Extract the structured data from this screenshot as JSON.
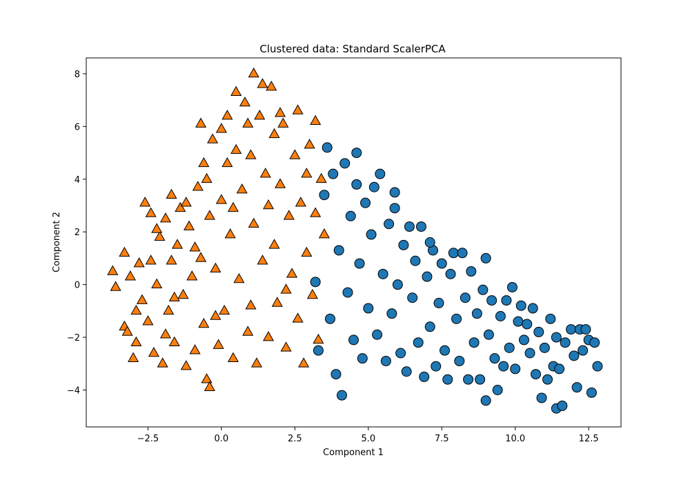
{
  "chart_data": {
    "type": "scatter",
    "title": "Clustered data: Standard ScalerPCA",
    "xlabel": "Component 1",
    "ylabel": "Component 2",
    "xlim": [
      -4.6,
      13.6
    ],
    "ylim": [
      -5.4,
      8.6
    ],
    "xticks": [
      -2.5,
      0.0,
      2.5,
      5.0,
      7.5,
      10.0,
      12.5
    ],
    "xtick_labels": [
      "−2.5",
      "0.0",
      "2.5",
      "5.0",
      "7.5",
      "10.0",
      "12.5"
    ],
    "yticks": [
      -4,
      -2,
      0,
      2,
      4,
      6,
      8
    ],
    "ytick_labels": [
      "−4",
      "−2",
      "0",
      "2",
      "4",
      "6",
      "8"
    ],
    "grid": false,
    "series": [
      {
        "marker": "triangle",
        "color": "#ff7f0e",
        "edge_color": "#000000",
        "points": [
          [
            -3.7,
            0.5
          ],
          [
            -3.6,
            -0.1
          ],
          [
            -3.3,
            1.2
          ],
          [
            -3.3,
            -1.6
          ],
          [
            -3.2,
            -1.8
          ],
          [
            -3.1,
            0.3
          ],
          [
            -3.0,
            -2.8
          ],
          [
            -2.9,
            -2.2
          ],
          [
            -2.8,
            0.8
          ],
          [
            -2.7,
            -0.6
          ],
          [
            -2.6,
            3.1
          ],
          [
            -2.5,
            -1.4
          ],
          [
            -2.4,
            2.7
          ],
          [
            -2.3,
            -2.6
          ],
          [
            -2.2,
            0.0
          ],
          [
            -2.1,
            1.8
          ],
          [
            -2.0,
            -3.0
          ],
          [
            -1.9,
            2.5
          ],
          [
            -1.8,
            -1.0
          ],
          [
            -1.7,
            0.9
          ],
          [
            -1.7,
            3.4
          ],
          [
            -1.6,
            -2.2
          ],
          [
            -1.5,
            1.5
          ],
          [
            -1.4,
            2.9
          ],
          [
            -1.3,
            -0.4
          ],
          [
            -1.2,
            -3.1
          ],
          [
            -1.1,
            2.2
          ],
          [
            -1.0,
            0.3
          ],
          [
            -0.9,
            -2.5
          ],
          [
            -0.8,
            3.7
          ],
          [
            -0.7,
            6.1
          ],
          [
            -0.7,
            1.0
          ],
          [
            -0.6,
            -1.5
          ],
          [
            -0.5,
            -3.6
          ],
          [
            -0.5,
            4.0
          ],
          [
            -0.4,
            2.6
          ],
          [
            -0.4,
            -3.9
          ],
          [
            -0.3,
            5.5
          ],
          [
            -0.2,
            0.6
          ],
          [
            -0.1,
            -2.3
          ],
          [
            0.0,
            5.9
          ],
          [
            0.0,
            3.2
          ],
          [
            0.1,
            -1.0
          ],
          [
            0.2,
            4.6
          ],
          [
            0.3,
            1.9
          ],
          [
            0.4,
            -2.8
          ],
          [
            0.5,
            7.3
          ],
          [
            0.5,
            5.1
          ],
          [
            0.6,
            0.2
          ],
          [
            0.7,
            3.6
          ],
          [
            0.8,
            6.9
          ],
          [
            0.9,
            -1.8
          ],
          [
            1.0,
            4.9
          ],
          [
            1.1,
            8.0
          ],
          [
            1.1,
            2.3
          ],
          [
            1.2,
            -3.0
          ],
          [
            1.3,
            6.4
          ],
          [
            1.4,
            0.9
          ],
          [
            1.5,
            4.2
          ],
          [
            1.6,
            -2.0
          ],
          [
            1.7,
            7.5
          ],
          [
            1.8,
            5.7
          ],
          [
            1.8,
            1.5
          ],
          [
            1.9,
            -0.7
          ],
          [
            2.0,
            3.8
          ],
          [
            2.1,
            6.1
          ],
          [
            2.2,
            -2.4
          ],
          [
            2.3,
            2.6
          ],
          [
            2.4,
            0.4
          ],
          [
            2.5,
            4.9
          ],
          [
            2.6,
            -1.3
          ],
          [
            2.6,
            6.6
          ],
          [
            2.7,
            3.1
          ],
          [
            2.8,
            -3.0
          ],
          [
            2.9,
            1.2
          ],
          [
            3.0,
            5.3
          ],
          [
            3.1,
            -0.4
          ],
          [
            3.2,
            6.2
          ],
          [
            3.2,
            2.7
          ],
          [
            3.3,
            -2.1
          ],
          [
            3.4,
            4.0
          ],
          [
            3.5,
            1.9
          ],
          [
            -2.9,
            -1.0
          ],
          [
            -2.2,
            2.1
          ],
          [
            -1.6,
            -0.5
          ],
          [
            -0.9,
            1.4
          ],
          [
            -0.2,
            -1.2
          ],
          [
            0.4,
            2.9
          ],
          [
            1.0,
            -0.8
          ],
          [
            1.6,
            3.0
          ],
          [
            2.2,
            -0.2
          ],
          [
            2.9,
            4.2
          ],
          [
            -1.2,
            3.1
          ],
          [
            -0.6,
            4.6
          ],
          [
            0.2,
            6.4
          ],
          [
            0.9,
            6.1
          ],
          [
            1.4,
            7.6
          ],
          [
            2.0,
            6.5
          ],
          [
            -2.4,
            0.9
          ],
          [
            -1.9,
            -1.9
          ]
        ]
      },
      {
        "marker": "circle",
        "color": "#1f77b4",
        "edge_color": "#000000",
        "points": [
          [
            3.2,
            0.1
          ],
          [
            3.3,
            -2.5
          ],
          [
            3.5,
            3.4
          ],
          [
            3.6,
            5.2
          ],
          [
            3.7,
            -1.3
          ],
          [
            3.8,
            4.2
          ],
          [
            3.9,
            -3.4
          ],
          [
            4.0,
            1.3
          ],
          [
            4.1,
            -4.2
          ],
          [
            4.2,
            4.6
          ],
          [
            4.3,
            -0.3
          ],
          [
            4.4,
            2.6
          ],
          [
            4.5,
            -2.1
          ],
          [
            4.6,
            3.8
          ],
          [
            4.7,
            0.8
          ],
          [
            4.8,
            -2.8
          ],
          [
            4.9,
            3.1
          ],
          [
            5.0,
            -0.9
          ],
          [
            5.1,
            1.9
          ],
          [
            5.2,
            3.7
          ],
          [
            5.3,
            -1.9
          ],
          [
            5.4,
            4.2
          ],
          [
            5.5,
            0.4
          ],
          [
            5.6,
            -2.9
          ],
          [
            5.7,
            2.3
          ],
          [
            5.8,
            -1.1
          ],
          [
            5.9,
            2.9
          ],
          [
            6.0,
            0.0
          ],
          [
            6.1,
            -2.6
          ],
          [
            6.2,
            1.5
          ],
          [
            6.3,
            -3.3
          ],
          [
            6.4,
            2.2
          ],
          [
            6.5,
            -0.5
          ],
          [
            6.6,
            0.9
          ],
          [
            6.7,
            -2.2
          ],
          [
            6.8,
            2.2
          ],
          [
            6.9,
            -3.5
          ],
          [
            7.0,
            0.3
          ],
          [
            7.1,
            -1.6
          ],
          [
            7.2,
            1.3
          ],
          [
            7.3,
            -3.1
          ],
          [
            7.4,
            -0.7
          ],
          [
            7.5,
            0.8
          ],
          [
            7.6,
            -2.5
          ],
          [
            7.7,
            -3.6
          ],
          [
            7.8,
            0.4
          ],
          [
            7.9,
            1.2
          ],
          [
            8.0,
            -1.3
          ],
          [
            8.1,
            -2.9
          ],
          [
            8.2,
            1.2
          ],
          [
            8.3,
            -0.5
          ],
          [
            8.4,
            -3.6
          ],
          [
            8.5,
            0.5
          ],
          [
            8.6,
            -2.2
          ],
          [
            8.7,
            -1.1
          ],
          [
            8.8,
            -3.6
          ],
          [
            8.9,
            -0.2
          ],
          [
            9.0,
            1.0
          ],
          [
            9.0,
            -4.4
          ],
          [
            9.1,
            -1.9
          ],
          [
            9.2,
            -0.6
          ],
          [
            9.3,
            -2.8
          ],
          [
            9.4,
            -4.0
          ],
          [
            9.5,
            -1.2
          ],
          [
            9.6,
            -3.1
          ],
          [
            9.7,
            -0.6
          ],
          [
            9.8,
            -2.4
          ],
          [
            9.9,
            -0.1
          ],
          [
            10.0,
            -3.2
          ],
          [
            10.1,
            -1.4
          ],
          [
            10.2,
            -0.8
          ],
          [
            10.3,
            -2.1
          ],
          [
            10.4,
            -1.5
          ],
          [
            10.5,
            -2.6
          ],
          [
            10.6,
            -0.9
          ],
          [
            10.7,
            -3.4
          ],
          [
            10.8,
            -1.8
          ],
          [
            10.9,
            -4.3
          ],
          [
            11.0,
            -2.4
          ],
          [
            11.1,
            -3.6
          ],
          [
            11.2,
            -1.3
          ],
          [
            11.3,
            -3.1
          ],
          [
            11.4,
            -4.7
          ],
          [
            11.4,
            -2.0
          ],
          [
            11.5,
            -3.2
          ],
          [
            11.6,
            -4.6
          ],
          [
            11.7,
            -2.2
          ],
          [
            11.9,
            -1.7
          ],
          [
            12.0,
            -2.7
          ],
          [
            12.1,
            -3.9
          ],
          [
            12.2,
            -1.7
          ],
          [
            12.3,
            -2.5
          ],
          [
            12.4,
            -1.7
          ],
          [
            12.5,
            -2.1
          ],
          [
            12.6,
            -4.1
          ],
          [
            12.7,
            -2.2
          ],
          [
            12.8,
            -3.1
          ],
          [
            4.6,
            5.0
          ],
          [
            5.9,
            3.5
          ],
          [
            7.1,
            1.6
          ]
        ]
      }
    ]
  }
}
